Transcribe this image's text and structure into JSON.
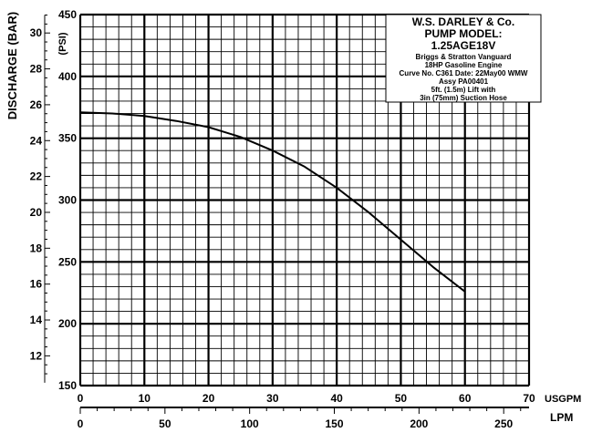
{
  "chart_data": {
    "type": "line",
    "ylabel_bar": "DISCHARGE (BAR)",
    "ylabel_psi": "(PSI)",
    "xlabel_usgpm": "USGPM",
    "xlabel_lpm": "LPM",
    "psi_ticks": [
      150,
      200,
      250,
      300,
      350,
      400,
      450
    ],
    "bar_ticks": [
      12,
      14,
      16,
      18,
      20,
      22,
      24,
      26,
      28,
      30
    ],
    "usgpm_ticks": [
      0,
      10,
      20,
      30,
      40,
      50,
      60,
      70
    ],
    "lpm_ticks": [
      0,
      50,
      100,
      150,
      200,
      250
    ],
    "xlim": [
      0,
      70
    ],
    "ylim": [
      150,
      450
    ],
    "grid": true,
    "series": [
      {
        "x": [
          0,
          5,
          10,
          15,
          20,
          25,
          30,
          35,
          40,
          45,
          50,
          55,
          60
        ],
        "y": [
          371,
          370,
          368,
          364,
          359,
          351,
          340,
          327,
          310,
          290,
          268,
          246,
          226
        ]
      }
    ],
    "info": {
      "company": "W.S. DARLEY & Co.",
      "model_label": "PUMP MODEL:",
      "model": "1.25AGE18V",
      "engine1": "Briggs & Stratton Vanguard",
      "engine2": "18HP Gasoline Engine",
      "curve": "Curve No. C361 Date: 22May00 WMW",
      "assy": "Assy PA00401",
      "lift1": "5ft. (1.5m) Lift with",
      "lift2": "3in (75mm) Suction Hose"
    }
  }
}
